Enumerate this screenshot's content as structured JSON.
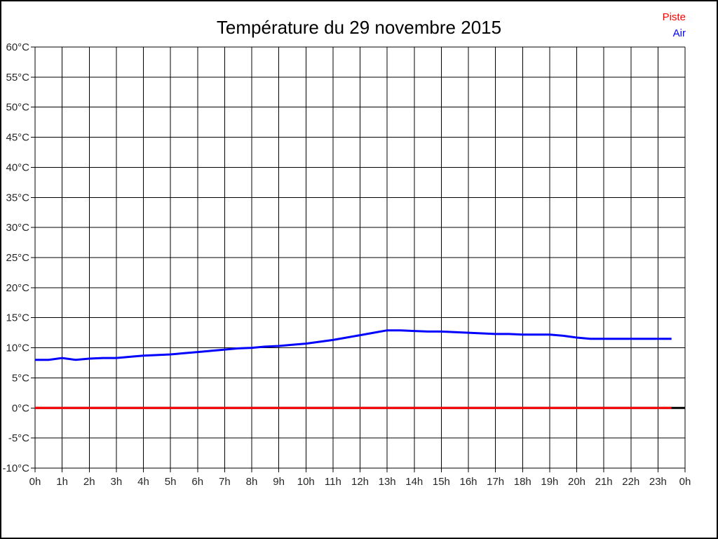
{
  "title": "Température du 29 novembre 2015",
  "legend": {
    "items": [
      {
        "label": "Piste",
        "color": "#ff0000"
      },
      {
        "label": "Air",
        "color": "#0000ff"
      }
    ]
  },
  "chart_data": {
    "type": "line",
    "title": "Température du 29 novembre 2015",
    "xlabel": "",
    "ylabel": "",
    "x_unit": "h",
    "y_unit": "°C",
    "xlim": [
      0,
      24
    ],
    "ylim": [
      -10,
      60
    ],
    "grid": true,
    "grid_color": "#000000",
    "axis_color": "#000000",
    "legend_position": "top-right",
    "x_tick_values": [
      0,
      1,
      2,
      3,
      4,
      5,
      6,
      7,
      8,
      9,
      10,
      11,
      12,
      13,
      14,
      15,
      16,
      17,
      18,
      19,
      20,
      21,
      22,
      23,
      24
    ],
    "x_tick_labels": [
      "0h",
      "1h",
      "2h",
      "3h",
      "4h",
      "5h",
      "6h",
      "7h",
      "8h",
      "9h",
      "10h",
      "11h",
      "12h",
      "13h",
      "14h",
      "15h",
      "16h",
      "17h",
      "18h",
      "19h",
      "20h",
      "21h",
      "22h",
      "23h",
      "0h"
    ],
    "y_tick_values": [
      -10,
      -5,
      0,
      5,
      10,
      15,
      20,
      25,
      30,
      35,
      40,
      45,
      50,
      55,
      60
    ],
    "y_tick_labels": [
      "-10°C",
      "-5°C",
      "0°C",
      "5°C",
      "10°C",
      "15°C",
      "20°C",
      "25°C",
      "30°C",
      "35°C",
      "40°C",
      "45°C",
      "50°C",
      "55°C",
      "60°C"
    ],
    "series": [
      {
        "name": "zero-baseline",
        "in_legend": false,
        "color": "#000000",
        "width": 3,
        "points": [
          [
            0,
            0
          ],
          [
            24,
            0
          ]
        ]
      },
      {
        "name": "Piste",
        "in_legend": true,
        "color": "#ff0000",
        "width": 3,
        "points": [
          [
            0,
            0
          ],
          [
            23.5,
            0
          ]
        ]
      },
      {
        "name": "Air",
        "in_legend": true,
        "color": "#0000ff",
        "width": 3,
        "points": [
          [
            0,
            8.0
          ],
          [
            0.5,
            8.0
          ],
          [
            1,
            8.3
          ],
          [
            1.5,
            8.0
          ],
          [
            2,
            8.2
          ],
          [
            2.5,
            8.3
          ],
          [
            3,
            8.3
          ],
          [
            3.5,
            8.5
          ],
          [
            4,
            8.7
          ],
          [
            4.5,
            8.8
          ],
          [
            5,
            8.9
          ],
          [
            5.5,
            9.1
          ],
          [
            6,
            9.3
          ],
          [
            6.5,
            9.5
          ],
          [
            7,
            9.7
          ],
          [
            7.5,
            9.9
          ],
          [
            8,
            10.0
          ],
          [
            8.5,
            10.2
          ],
          [
            9,
            10.3
          ],
          [
            9.5,
            10.5
          ],
          [
            10,
            10.7
          ],
          [
            10.5,
            11.0
          ],
          [
            11,
            11.3
          ],
          [
            11.5,
            11.7
          ],
          [
            12,
            12.1
          ],
          [
            12.5,
            12.5
          ],
          [
            13,
            12.9
          ],
          [
            13.5,
            12.9
          ],
          [
            14,
            12.8
          ],
          [
            14.5,
            12.7
          ],
          [
            15,
            12.7
          ],
          [
            15.5,
            12.6
          ],
          [
            16,
            12.5
          ],
          [
            16.5,
            12.4
          ],
          [
            17,
            12.3
          ],
          [
            17.5,
            12.3
          ],
          [
            18,
            12.2
          ],
          [
            18.5,
            12.2
          ],
          [
            19,
            12.2
          ],
          [
            19.5,
            12.0
          ],
          [
            20,
            11.7
          ],
          [
            20.5,
            11.5
          ],
          [
            21,
            11.5
          ],
          [
            21.5,
            11.5
          ],
          [
            22,
            11.5
          ],
          [
            22.5,
            11.5
          ],
          [
            23,
            11.5
          ],
          [
            23.5,
            11.5
          ]
        ]
      }
    ]
  }
}
